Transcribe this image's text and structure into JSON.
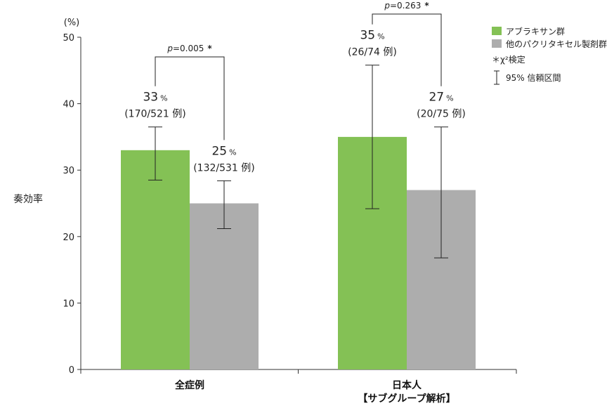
{
  "chart_data": {
    "type": "bar",
    "title": "",
    "ylabel": "奏効率",
    "yunit": "(%)",
    "ylim": [
      0,
      50
    ],
    "yticks": [
      0,
      10,
      20,
      30,
      40,
      50
    ],
    "grid": false,
    "legend_position": "top-right",
    "categories": [
      {
        "line1": "全症例",
        "line2": ""
      },
      {
        "line1": "日本人",
        "line2": "【サブグループ解析】"
      }
    ],
    "series": [
      {
        "name": "アブラキサン群",
        "color": "#84c155",
        "values": [
          33,
          35
        ],
        "ci_low": [
          28.5,
          24.2
        ],
        "ci_high": [
          36.5,
          45.8
        ],
        "labels": [
          {
            "pct": "33",
            "unit": "%",
            "frac": "(170/521 例)"
          },
          {
            "pct": "35",
            "unit": "%",
            "frac": "(26/74 例)"
          }
        ]
      },
      {
        "name": "他のパクリタキセル製剤群",
        "color": "#adadad",
        "values": [
          25,
          27
        ],
        "ci_low": [
          21.2,
          16.8
        ],
        "ci_high": [
          28.4,
          36.5
        ],
        "labels": [
          {
            "pct": "25",
            "unit": "%",
            "frac": "(132/531 例)"
          },
          {
            "pct": "27",
            "unit": "%",
            "frac": "(20/75 例)"
          }
        ]
      }
    ],
    "pvalues": [
      {
        "category": 0,
        "p": "p",
        "text": "=0.005",
        "star": "*"
      },
      {
        "category": 1,
        "p": "p",
        "text": "=0.263",
        "star": "*"
      }
    ],
    "legend_notes": {
      "chi": "＊χ²検定",
      "ci": "95% 信頼区間"
    }
  }
}
